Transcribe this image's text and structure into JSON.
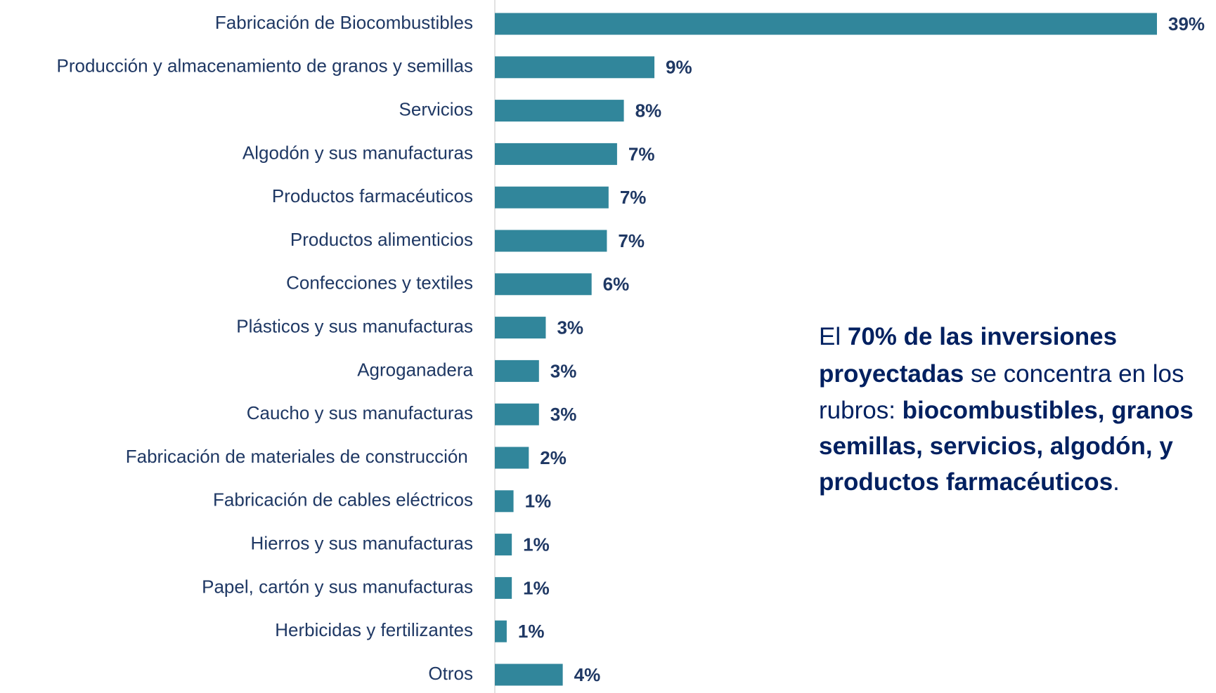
{
  "chart_data": {
    "type": "barh",
    "categories": [
      "Fabricación de Biocombustibles",
      "Producción y almacenamiento de granos y semillas",
      "Servicios",
      "Algodón y sus manufacturas",
      "Productos farmacéuticos",
      "Productos alimenticios",
      "Confecciones y textiles",
      "Plásticos y sus manufacturas",
      "Agroganadera",
      "Caucho y sus manufacturas",
      "Fabricación de materiales de construcción ",
      "Fabricación de cables eléctricos",
      "Hierros y sus manufacturas",
      "Papel, cartón y sus manufacturas",
      "Herbicidas y fertilizantes",
      "Otros"
    ],
    "values": [
      39,
      9.4,
      7.6,
      7.2,
      6.7,
      6.6,
      5.7,
      3.0,
      2.6,
      2.6,
      2.0,
      1.1,
      1.0,
      1.0,
      0.7,
      4.0
    ],
    "value_labels": [
      "39%",
      "9%",
      "8%",
      "7%",
      "7%",
      "7%",
      "6%",
      "3%",
      "3%",
      "3%",
      "2%",
      "1%",
      "1%",
      "1%",
      "1%",
      "4%"
    ],
    "color": "#31869b",
    "annotation": {
      "lines": [
        [
          {
            "text": "El ",
            "bold": false
          },
          {
            "text": "70% de las inversiones",
            "bold": true
          }
        ],
        [
          {
            "text": "proyectadas",
            "bold": true
          },
          {
            "text": " se concentra en los",
            "bold": false
          }
        ],
        [
          {
            "text": "rubros: ",
            "bold": false
          },
          {
            "text": "biocombustibles, granos",
            "bold": true
          }
        ],
        [
          {
            "text": "semillas, servicios, algodón, y",
            "bold": true
          }
        ],
        [
          {
            "text": "productos farmacéuticos",
            "bold": true
          },
          {
            "text": ".",
            "bold": false
          }
        ]
      ]
    }
  }
}
